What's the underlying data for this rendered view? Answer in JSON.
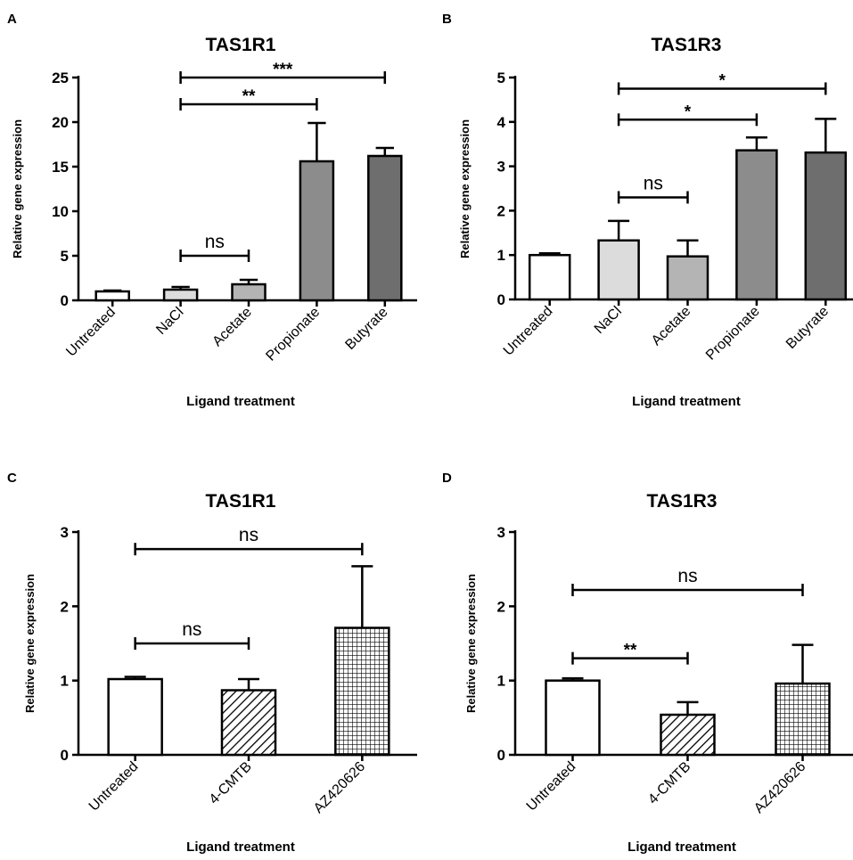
{
  "chart_data": [
    {
      "panel": "A",
      "type": "bar",
      "title": "TAS1R1",
      "xlabel": "Ligand treatment",
      "ylabel": "Relative gene expression",
      "ylim": [
        0,
        25
      ],
      "yticks": [
        0,
        5,
        10,
        15,
        20,
        25
      ],
      "categories": [
        "Untreated",
        "NaCl",
        "Acetate",
        "Propionate",
        "Butyrate"
      ],
      "values": [
        1.0,
        1.2,
        1.8,
        15.6,
        16.2
      ],
      "errors": [
        0.1,
        0.3,
        0.5,
        4.3,
        0.9
      ],
      "fills": [
        "#ffffff",
        "#dcdcdc",
        "#b4b4b4",
        "#8c8c8c",
        "#6e6e6e"
      ],
      "patterns": [
        "solid",
        "solid",
        "solid",
        "solid",
        "solid"
      ],
      "comparisons": [
        {
          "from": 1,
          "to": 2,
          "label": "ns",
          "level": 5
        },
        {
          "from": 1,
          "to": 3,
          "label": "**",
          "level": 22
        },
        {
          "from": 1,
          "to": 4,
          "label": "***",
          "level": 25
        }
      ]
    },
    {
      "panel": "B",
      "type": "bar",
      "title": "TAS1R3",
      "xlabel": "Ligand treatment",
      "ylabel": "Relative gene expression",
      "ylim": [
        0,
        5
      ],
      "yticks": [
        0,
        1,
        2,
        3,
        4,
        5
      ],
      "categories": [
        "Untreated",
        "NaCl",
        "Acetate",
        "Propionate",
        "Butyrate"
      ],
      "values": [
        1.0,
        1.33,
        0.97,
        3.36,
        3.31
      ],
      "errors": [
        0.04,
        0.44,
        0.36,
        0.29,
        0.76
      ],
      "fills": [
        "#ffffff",
        "#dcdcdc",
        "#b4b4b4",
        "#8c8c8c",
        "#6e6e6e"
      ],
      "patterns": [
        "solid",
        "solid",
        "solid",
        "solid",
        "solid"
      ],
      "comparisons": [
        {
          "from": 1,
          "to": 2,
          "label": "ns",
          "level": 2.3
        },
        {
          "from": 1,
          "to": 3,
          "label": "*",
          "level": 4.05
        },
        {
          "from": 1,
          "to": 4,
          "label": "*",
          "level": 4.75
        }
      ]
    },
    {
      "panel": "C",
      "type": "bar",
      "title": "TAS1R1",
      "xlabel": "Ligand treatment",
      "ylabel": "Relative gene expression",
      "ylim": [
        0,
        3
      ],
      "yticks": [
        0,
        1,
        2,
        3
      ],
      "categories": [
        "Untreated",
        "4-CMTB",
        "AZ420626"
      ],
      "values": [
        1.02,
        0.87,
        1.71
      ],
      "errors": [
        0.03,
        0.15,
        0.83
      ],
      "fills": [
        "#ffffff",
        "#ffffff",
        "#ffffff"
      ],
      "patterns": [
        "solid",
        "diagonal",
        "grid"
      ],
      "comparisons": [
        {
          "from": 0,
          "to": 1,
          "label": "ns",
          "level": 1.5
        },
        {
          "from": 0,
          "to": 2,
          "label": "ns",
          "level": 2.77
        }
      ]
    },
    {
      "panel": "D",
      "type": "bar",
      "title": "TAS1R3",
      "xlabel": "Ligand treatment",
      "ylabel": "Relative gene expression",
      "ylim": [
        0,
        3
      ],
      "yticks": [
        0,
        1,
        2,
        3
      ],
      "categories": [
        "Untreated",
        "4-CMTB",
        "AZ420626"
      ],
      "values": [
        1.0,
        0.54,
        0.96
      ],
      "errors": [
        0.03,
        0.17,
        0.52
      ],
      "fills": [
        "#ffffff",
        "#ffffff",
        "#ffffff"
      ],
      "patterns": [
        "solid",
        "diagonal",
        "grid"
      ],
      "comparisons": [
        {
          "from": 0,
          "to": 1,
          "label": "**",
          "level": 1.3
        },
        {
          "from": 0,
          "to": 2,
          "label": "ns",
          "level": 2.22
        }
      ]
    }
  ]
}
